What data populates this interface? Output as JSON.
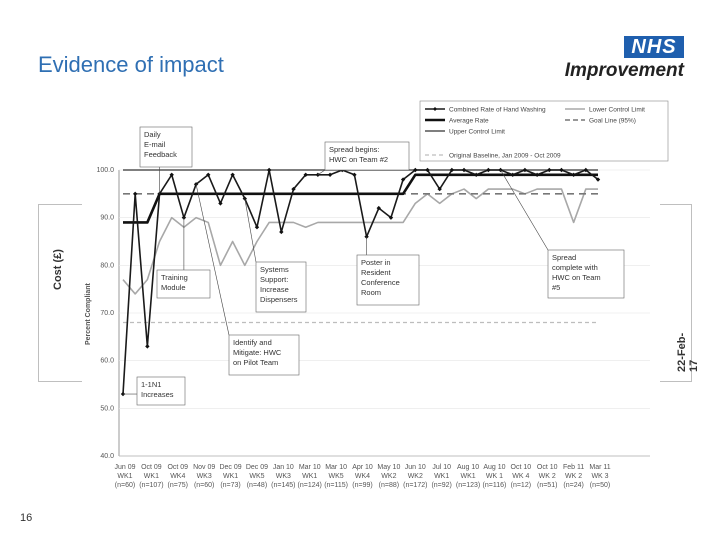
{
  "slide": {
    "title": "Evidence of impact",
    "logo_badge": "NHS",
    "logo_text": "Improvement",
    "background_axis_label": "Cost (£)",
    "background_date": "22-Feb-17",
    "slide_number": "16",
    "accent_color": "#2f6fb3",
    "logo_color": "#1f5fae"
  },
  "chart_data": {
    "type": "line",
    "title": "",
    "ylabel": "Percent Compliant",
    "xlabel": "",
    "ylim": [
      40,
      100
    ],
    "yticks": [
      "100.0",
      "90.0",
      "80.0",
      "70.0",
      "60.0",
      "50.0",
      "40.0"
    ],
    "x_week_labels": [
      "Jun 09",
      "Oct 09",
      "Oct 09",
      "Nov 09",
      "Dec 09",
      "Dec 09",
      "Jan 10",
      "Mar 10",
      "Mar 10",
      "Apr 10",
      "May 10",
      "Jun 10",
      "Jul 10",
      "Aug 10",
      "Aug 10",
      "Oct 10",
      "Oct 10",
      "Feb 11",
      "Mar 11"
    ],
    "x_wk_labels": [
      "WK1",
      "WK1",
      "WK4",
      "WK3",
      "WK1",
      "WK5",
      "WK3",
      "WK1",
      "WK5",
      "WK4",
      "WK2",
      "WK2",
      "WK1",
      "WK1",
      "WK 1",
      "WK 4",
      "WK 2",
      "WK 2",
      "WK 3"
    ],
    "x_n_labels": [
      "(n=60)",
      "(n=107)",
      "(n=75)",
      "(n=60)",
      "(n=73)",
      "(n=48)",
      "(n=145)",
      "(n=124)",
      "(n=115)",
      "(n=99)",
      "(n=88)",
      "(n=172)",
      "(n=92)",
      "(n=123)",
      "(n=116)",
      "(n=12)",
      "(n=51)",
      "(n=24)",
      "(n=50)"
    ],
    "legend": [
      {
        "label": "Combined Rate of Hand Washing",
        "style": "marker-line"
      },
      {
        "label": "Average Rate",
        "style": "thick"
      },
      {
        "label": "Upper Control Limit",
        "style": "medium"
      },
      {
        "label": "Original Baseline, Jan 2009 - Oct 2009",
        "style": "light-dash"
      },
      {
        "label": "Lower Control Limit",
        "style": "gray"
      },
      {
        "label": "Goal Line (95%)",
        "style": "dash"
      }
    ],
    "series": [
      {
        "name": "Combined Rate of Hand Washing",
        "values": [
          53,
          95,
          63,
          95,
          99,
          90,
          97,
          99,
          93,
          99,
          94,
          88,
          100,
          87,
          96,
          99,
          99,
          99,
          100,
          99,
          86,
          92,
          90,
          98,
          100,
          100,
          96,
          100,
          100,
          99,
          100,
          100,
          99,
          100,
          99,
          100,
          100,
          99,
          100,
          98
        ]
      },
      {
        "name": "Lower Control Limit",
        "values": [
          77,
          74,
          77,
          85,
          90,
          88,
          90,
          89,
          80,
          85,
          80,
          85,
          89,
          89,
          89,
          88,
          89,
          89,
          89,
          89,
          89,
          89,
          89,
          89,
          93,
          95,
          93,
          95,
          96,
          94,
          96,
          96,
          96,
          95,
          96,
          96,
          96,
          89,
          96,
          96
        ]
      },
      {
        "name": "Average Rate",
        "values": [
          89,
          89,
          89,
          95,
          95,
          95,
          95,
          95,
          95,
          95,
          95,
          95,
          95,
          95,
          95,
          95,
          95,
          95,
          95,
          95,
          95,
          95,
          95,
          95,
          99,
          99,
          99,
          99,
          99,
          99,
          99,
          99,
          99,
          99,
          99,
          99,
          99,
          99,
          99,
          99
        ]
      },
      {
        "name": "Upper Control Limit",
        "values": [
          100,
          100,
          100,
          100,
          100,
          100,
          100,
          100,
          100,
          100,
          100,
          100,
          100,
          100,
          100,
          100,
          100,
          100,
          100,
          100,
          100,
          100,
          100,
          100,
          100,
          100,
          100,
          100,
          100,
          100,
          100,
          100,
          100,
          100,
          100,
          100,
          100,
          100,
          100,
          100
        ]
      },
      {
        "name": "Goal Line (95%)",
        "values": [
          95,
          95,
          95,
          95,
          95,
          95,
          95,
          95,
          95,
          95,
          95,
          95,
          95,
          95,
          95,
          95,
          95,
          95,
          95,
          95,
          95,
          95,
          95,
          95,
          95,
          95,
          95,
          95,
          95,
          95,
          95,
          95,
          95,
          95,
          95,
          95,
          95,
          95,
          95,
          95
        ]
      },
      {
        "name": "Original Baseline, Jan 2009 - Oct 2009",
        "values": [
          68,
          68,
          68,
          68,
          68,
          68,
          68,
          68,
          68,
          68,
          68,
          68,
          68,
          68,
          68,
          68,
          68,
          68,
          68,
          68,
          68,
          68,
          68,
          68,
          68,
          68,
          68,
          68,
          68,
          68,
          68,
          68,
          68,
          68,
          68,
          68,
          68,
          68,
          68,
          68
        ]
      }
    ],
    "annotations": [
      {
        "text": [
          "Daily",
          "E-mail",
          "Feedback"
        ],
        "point": 3
      },
      {
        "text": [
          "Spread begins:",
          "HWC on Team #2"
        ],
        "point": 16
      },
      {
        "text": [
          "Training",
          "Module"
        ],
        "point": 5
      },
      {
        "text": [
          "Systems",
          "Support:",
          "Increase",
          "Dispensers"
        ],
        "point": 10
      },
      {
        "text": [
          "Poster in",
          "Resident",
          "Conference",
          "Room"
        ],
        "point": 20
      },
      {
        "text": [
          "Spread",
          "complete with",
          "HWC on Team",
          "#5"
        ],
        "point": 31
      },
      {
        "text": [
          "Identify and",
          "Mitigate: HWC",
          "on Pilot Team"
        ],
        "point": 6
      },
      {
        "text": [
          "1-1N1",
          "Increases"
        ],
        "point": 0
      }
    ]
  }
}
